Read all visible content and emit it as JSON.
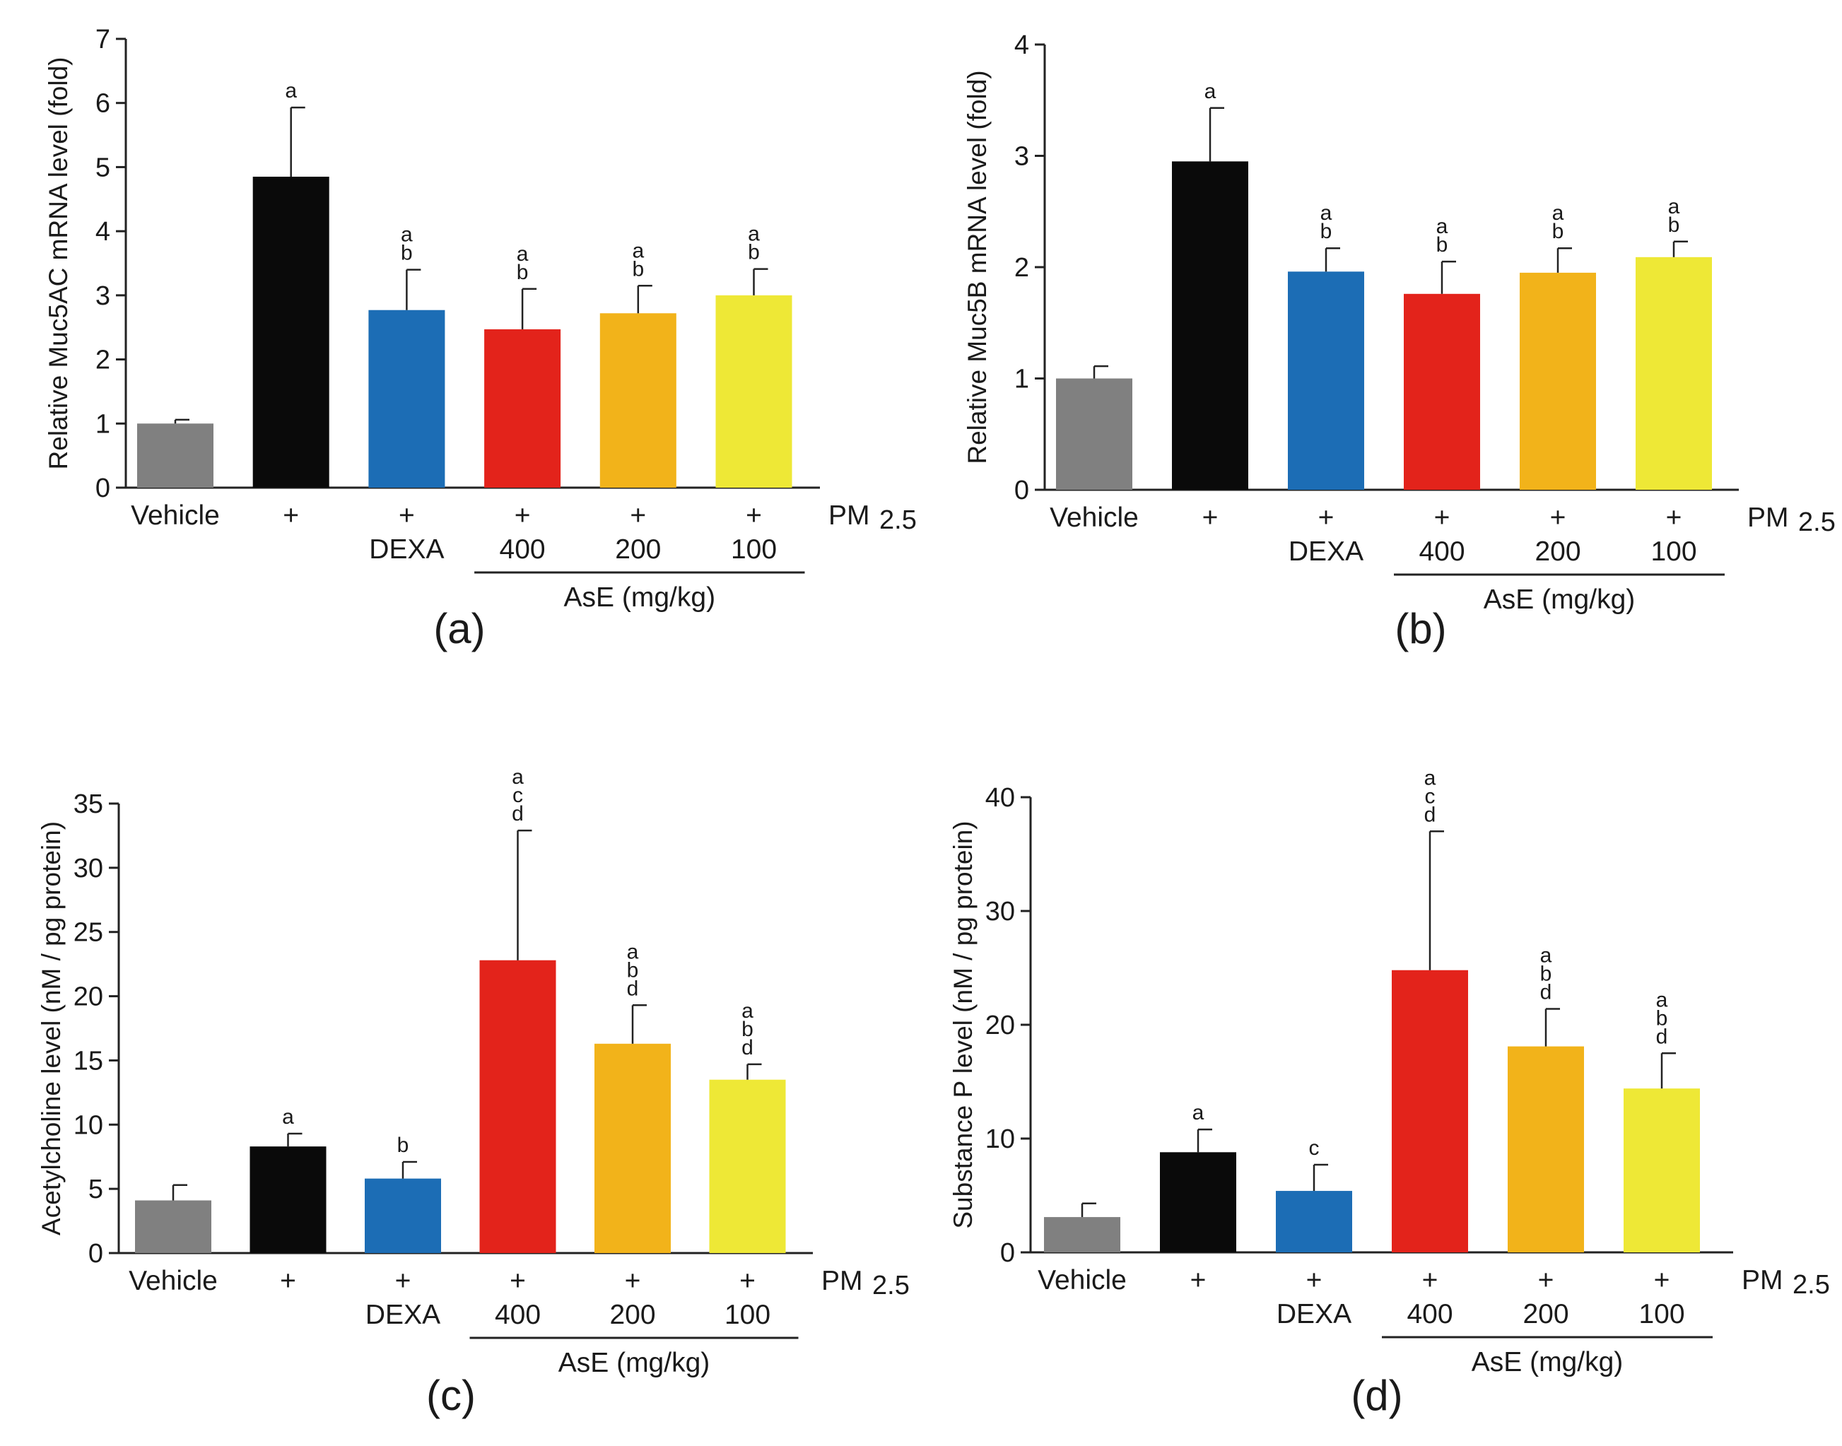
{
  "figure": {
    "group_label": "AsE (mg/kg)",
    "pm_label": "PM",
    "pm_sub": "2.5"
  },
  "colors": {
    "vehicle": "#808080",
    "pm": "#0a0a0a",
    "dexa": "#1c6db5",
    "ase400": "#e3231b",
    "ase200": "#f2b31a",
    "ase100": "#eee836",
    "axis": "#222222"
  },
  "chart_data": [
    {
      "panel": "(a)",
      "type": "bar",
      "ylabel": "Relative Muc5AC mRNA level (fold)",
      "ylim": [
        0,
        7
      ],
      "yticks": [
        "0",
        "1",
        "2",
        "3",
        "4",
        "5",
        "6",
        "7"
      ],
      "categories": [
        "Vehicle",
        "PM2.5",
        "PM2.5 + DEXA",
        "PM2.5 + AsE 400",
        "PM2.5 + AsE 200",
        "PM2.5 + AsE 100"
      ],
      "row1": [
        "Vehicle",
        "+",
        "+",
        "+",
        "+",
        "+"
      ],
      "row2": [
        "",
        "",
        "DEXA",
        "400",
        "200",
        "100"
      ],
      "values": [
        1.0,
        4.85,
        2.77,
        2.47,
        2.72,
        3.0
      ],
      "errors": [
        0.06,
        1.08,
        0.63,
        0.63,
        0.43,
        0.41
      ],
      "significance": [
        [],
        [
          "a"
        ],
        [
          "a",
          "b"
        ],
        [
          "a",
          "b"
        ],
        [
          "a",
          "b"
        ],
        [
          "a",
          "b"
        ]
      ]
    },
    {
      "panel": "(b)",
      "type": "bar",
      "ylabel": "Relative Muc5B mRNA level (fold)",
      "ylim": [
        0,
        4
      ],
      "yticks": [
        "0",
        "1",
        "2",
        "3",
        "4"
      ],
      "categories": [
        "Vehicle",
        "PM2.5",
        "PM2.5 + DEXA",
        "PM2.5 + AsE 400",
        "PM2.5 + AsE 200",
        "PM2.5 + AsE 100"
      ],
      "row1": [
        "Vehicle",
        "+",
        "+",
        "+",
        "+",
        "+"
      ],
      "row2": [
        "",
        "",
        "DEXA",
        "400",
        "200",
        "100"
      ],
      "values": [
        1.0,
        2.95,
        1.96,
        1.76,
        1.95,
        2.09
      ],
      "errors": [
        0.11,
        0.48,
        0.21,
        0.29,
        0.22,
        0.14
      ],
      "significance": [
        [],
        [
          "a"
        ],
        [
          "a",
          "b"
        ],
        [
          "a",
          "b"
        ],
        [
          "a",
          "b"
        ],
        [
          "a",
          "b"
        ]
      ]
    },
    {
      "panel": "(c)",
      "type": "bar",
      "ylabel": "Acetylcholine level (nM / pg protein)",
      "ylim": [
        0,
        35
      ],
      "yticks": [
        "0",
        "5",
        "10",
        "15",
        "20",
        "25",
        "30",
        "35"
      ],
      "categories": [
        "Vehicle",
        "PM2.5",
        "PM2.5 + DEXA",
        "PM2.5 + AsE 400",
        "PM2.5 + AsE 200",
        "PM2.5 + AsE 100"
      ],
      "row1": [
        "Vehicle",
        "+",
        "+",
        "+",
        "+",
        "+"
      ],
      "row2": [
        "",
        "",
        "DEXA",
        "400",
        "200",
        "100"
      ],
      "values": [
        4.1,
        8.3,
        5.8,
        22.8,
        16.3,
        13.5
      ],
      "errors": [
        1.2,
        1.0,
        1.3,
        10.1,
        3.0,
        1.2
      ],
      "significance": [
        [],
        [
          "a"
        ],
        [
          "b"
        ],
        [
          "a",
          "c",
          "d"
        ],
        [
          "a",
          "b",
          "d"
        ],
        [
          "a",
          "b",
          "d"
        ]
      ]
    },
    {
      "panel": "(d)",
      "type": "bar",
      "ylabel": "Substance P level (nM / pg protein)",
      "ylim": [
        0,
        40
      ],
      "yticks": [
        "0",
        "10",
        "20",
        "30",
        "40"
      ],
      "categories": [
        "Vehicle",
        "PM2.5",
        "PM2.5 + DEXA",
        "PM2.5 + AsE 400",
        "PM2.5 + AsE 200",
        "PM2.5 + AsE 100"
      ],
      "row1": [
        "Vehicle",
        "+",
        "+",
        "+",
        "+",
        "+"
      ],
      "row2": [
        "",
        "",
        "DEXA",
        "400",
        "200",
        "100"
      ],
      "values": [
        3.1,
        8.8,
        5.4,
        24.8,
        18.1,
        14.4
      ],
      "errors": [
        1.2,
        2.0,
        2.3,
        12.2,
        3.3,
        3.1
      ],
      "significance": [
        [],
        [
          "a"
        ],
        [
          "c"
        ],
        [
          "a",
          "c",
          "d"
        ],
        [
          "a",
          "b",
          "d"
        ],
        [
          "a",
          "b",
          "d"
        ]
      ]
    }
  ]
}
